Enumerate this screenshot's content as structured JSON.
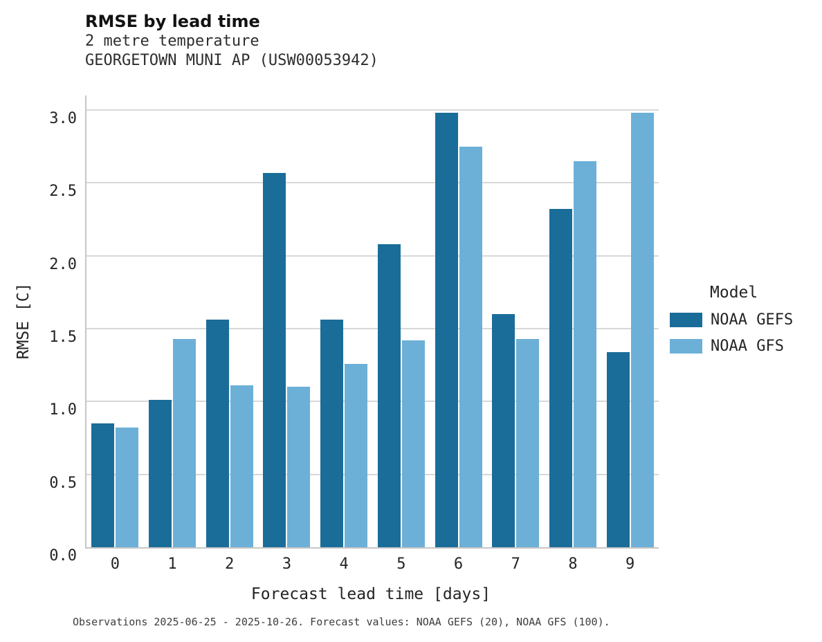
{
  "header": {
    "title": "RMSE by lead time",
    "subtitle1": "2 metre temperature",
    "subtitle2": "GEORGETOWN MUNI AP (USW00053942)"
  },
  "legend": {
    "title": "Model",
    "entries": [
      {
        "label": "NOAA GEFS",
        "color": "#1a6d99"
      },
      {
        "label": "NOAA GFS",
        "color": "#6cb0d8"
      }
    ]
  },
  "footer": {
    "note": "Observations 2025-06-25 - 2025-10-26. Forecast values: NOAA GEFS (20), NOAA GFS (100)."
  },
  "chart_data": {
    "type": "bar",
    "title": "RMSE by lead time",
    "subtitle": [
      "2 metre temperature",
      "GEORGETOWN MUNI AP (USW00053942)"
    ],
    "categories": [
      "0",
      "1",
      "2",
      "3",
      "4",
      "5",
      "6",
      "7",
      "8",
      "9"
    ],
    "series": [
      {
        "name": "NOAA GEFS",
        "color": "#1a6d99",
        "values": [
          0.85,
          1.01,
          1.56,
          2.57,
          1.56,
          2.08,
          2.98,
          1.6,
          2.32,
          1.34
        ]
      },
      {
        "name": "NOAA GFS",
        "color": "#6cb0d8",
        "values": [
          0.82,
          1.43,
          1.11,
          1.1,
          1.26,
          1.42,
          2.75,
          1.43,
          2.65,
          2.98
        ]
      }
    ],
    "xlabel": "Forecast lead time [days]",
    "ylabel": "RMSE [C]",
    "ylim": [
      0,
      3.1
    ],
    "yticks": [
      0.0,
      0.5,
      1.0,
      1.5,
      2.0,
      2.5,
      3.0
    ],
    "grid": true,
    "legend_title": "Model",
    "legend_position": "right"
  }
}
